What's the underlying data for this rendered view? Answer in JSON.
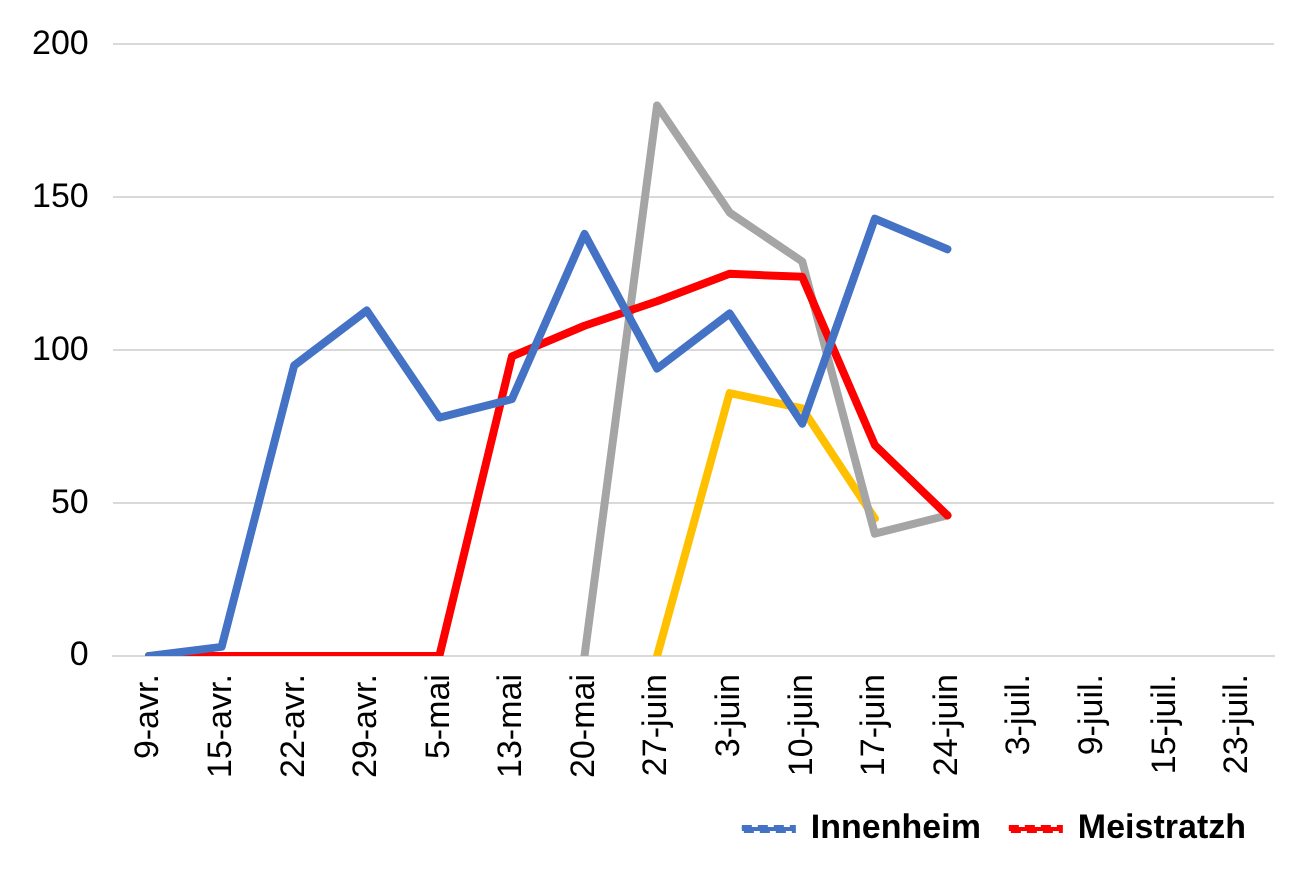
{
  "chart_data": {
    "type": "line",
    "categories": [
      "9-avr.",
      "15-avr.",
      "22-avr.",
      "29-avr.",
      "5-mai",
      "13-mai",
      "20-mai",
      "27-juin",
      "3-juin",
      "10-juin",
      "17-juin",
      "24-juin",
      "3-juil.",
      "9-juil.",
      "15-juil.",
      "23-juil."
    ],
    "series": [
      {
        "name": "Innenheim",
        "color": "#4472c4",
        "values": [
          0,
          3,
          95,
          113,
          78,
          84,
          138,
          94,
          112,
          76,
          143,
          133,
          null,
          null,
          null,
          null
        ]
      },
      {
        "name": "Meistratzh",
        "color": "#ff0000",
        "values": [
          0,
          0,
          0,
          0,
          0,
          98,
          108,
          116,
          125,
          124,
          69,
          46,
          null,
          null,
          null,
          null
        ]
      },
      {
        "color": "#a5a5a5",
        "values": [
          null,
          null,
          null,
          null,
          null,
          null,
          0,
          180,
          145,
          129,
          40,
          46,
          null,
          null,
          null,
          null
        ]
      },
      {
        "color": "#ffc000",
        "values": [
          null,
          null,
          null,
          null,
          null,
          null,
          null,
          0,
          86,
          81,
          45,
          null,
          null,
          null,
          null,
          null
        ]
      }
    ],
    "ylim": [
      0,
      200
    ],
    "yticks": [
      0,
      50,
      100,
      150,
      200
    ],
    "grid": "y",
    "legend": "bottom right",
    "marker": "none",
    "line_style": "solid"
  }
}
